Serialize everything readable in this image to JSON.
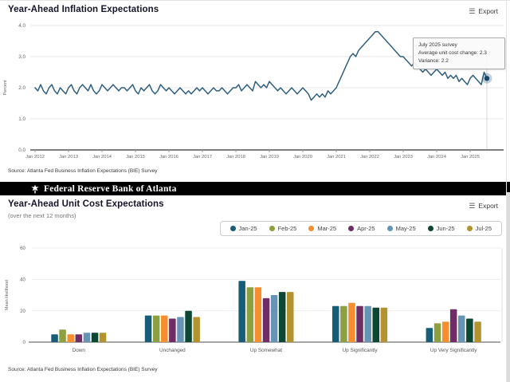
{
  "top_chart": {
    "title": "Year-Ahead Inflation Expectations",
    "export_label": "Export",
    "source": "Source: Atlanta Fed Business Inflation Expectations (BIE) Survey",
    "tooltip": {
      "line1": "July 2025 survey",
      "line2": "Average unit cost change: 2.3",
      "line3": "Variance: 2.2"
    }
  },
  "banner": {
    "text": "Federal Reserve Bank of Atlanta"
  },
  "bottom_chart": {
    "title": "Year-Ahead Unit Cost Expectations",
    "subtitle": "(over the next 12 months)",
    "export_label": "Export",
    "source": "Source: Atlanta Fed Business Inflation Expectations (BIE) Survey"
  },
  "colors": {
    "line": "#2e5f7f",
    "marker": "#17486b",
    "grid": "#e8e8e8",
    "axis": "#555555",
    "banner_bg": "#000000"
  },
  "chart_data": [
    {
      "type": "line",
      "title": "Year-Ahead Inflation Expectations",
      "xlabel": "",
      "ylabel": "Percent",
      "ylim": [
        0,
        4
      ],
      "yticks": [
        0,
        1,
        2,
        3,
        4
      ],
      "ytick_labels": [
        "0.0",
        "1.0",
        "2.0",
        "3.0",
        "4.0"
      ],
      "grid": true,
      "x_frequency": "monthly",
      "x_start": "Jan 2012",
      "x_end": "Jul 2025",
      "x_tick_labels": [
        "Jan 2012",
        "Jan 2013",
        "Jan 2014",
        "Jan 2015",
        "Jan 2016",
        "Jan 2017",
        "Jan 2018",
        "Jan 2019",
        "Jan 2020",
        "Jan 2021",
        "Jan 2022",
        "Jan 2023",
        "Jan 2024",
        "Jan 2025"
      ],
      "series": [
        {
          "name": "Year-ahead inflation expectations",
          "color": "#2e5f7f",
          "values": [
            2.0,
            1.9,
            2.1,
            1.9,
            1.8,
            2.0,
            2.1,
            1.9,
            1.8,
            2.0,
            1.9,
            1.8,
            2.0,
            2.1,
            1.9,
            1.8,
            2.0,
            2.1,
            2.0,
            1.9,
            2.1,
            1.9,
            1.8,
            1.9,
            2.1,
            2.0,
            1.9,
            2.0,
            2.1,
            2.0,
            1.9,
            2.0,
            2.0,
            1.9,
            2.0,
            2.1,
            1.9,
            1.8,
            2.0,
            1.9,
            2.0,
            2.1,
            1.9,
            1.8,
            1.9,
            2.1,
            2.0,
            1.9,
            2.0,
            1.9,
            1.8,
            1.9,
            2.0,
            1.9,
            1.8,
            1.9,
            1.8,
            1.9,
            2.0,
            1.9,
            2.0,
            1.9,
            1.8,
            1.9,
            2.0,
            1.9,
            1.9,
            2.0,
            1.9,
            1.8,
            1.9,
            2.0,
            2.0,
            2.1,
            1.9,
            2.0,
            2.1,
            2.0,
            1.9,
            2.2,
            2.1,
            2.0,
            2.1,
            2.0,
            2.2,
            2.1,
            2.0,
            1.9,
            2.0,
            1.9,
            1.8,
            1.9,
            2.0,
            1.9,
            1.8,
            1.9,
            2.0,
            1.9,
            1.8,
            1.6,
            1.7,
            1.8,
            1.7,
            1.8,
            1.7,
            1.9,
            1.8,
            1.9,
            2.0,
            2.2,
            2.4,
            2.6,
            2.8,
            3.0,
            3.1,
            3.0,
            3.2,
            3.3,
            3.4,
            3.5,
            3.6,
            3.7,
            3.8,
            3.8,
            3.7,
            3.6,
            3.5,
            3.4,
            3.3,
            3.2,
            3.1,
            3.0,
            3.0,
            2.9,
            2.8,
            2.7,
            2.8,
            2.7,
            2.6,
            2.5,
            2.6,
            2.5,
            2.4,
            2.5,
            2.6,
            2.5,
            2.4,
            2.5,
            2.3,
            2.4,
            2.3,
            2.4,
            2.2,
            2.3,
            2.2,
            2.1,
            2.3,
            2.4,
            2.3,
            2.2,
            2.1,
            2.5,
            2.3
          ]
        }
      ],
      "highlighted_point": {
        "x": "Jul 2025",
        "value": 2.3,
        "tooltip": [
          "July 2025 survey",
          "Average unit cost change: 2.3",
          "Variance: 2.2"
        ]
      },
      "legend_position": "none"
    },
    {
      "type": "bar",
      "title": "Year-Ahead Unit Cost Expectations",
      "subtitle": "(over the next 12 months)",
      "xlabel": "",
      "ylabel": "Mean likelihood",
      "ylim": [
        0,
        60
      ],
      "yticks": [
        0,
        20,
        40,
        60
      ],
      "grid": true,
      "legend_position": "top-right",
      "categories": [
        "Down",
        "Unchanged",
        "Up Somewhat",
        "Up Significantly",
        "Up Very Significantly"
      ],
      "series": [
        {
          "name": "Jan-25",
          "color": "#175d77",
          "values": [
            5,
            17,
            39,
            23,
            9
          ]
        },
        {
          "name": "Feb-25",
          "color": "#8ca03f",
          "values": [
            8,
            17,
            35,
            23,
            12
          ]
        },
        {
          "name": "Mar-25",
          "color": "#f68d2e",
          "values": [
            5,
            17,
            35,
            25,
            13
          ]
        },
        {
          "name": "Apr-25",
          "color": "#6f2c67",
          "values": [
            5,
            15,
            28,
            23,
            21
          ]
        },
        {
          "name": "May-25",
          "color": "#6594b4",
          "values": [
            6,
            16,
            30,
            23,
            17
          ]
        },
        {
          "name": "Jun-25",
          "color": "#0b4733",
          "values": [
            6,
            20,
            32,
            22,
            15
          ]
        },
        {
          "name": "Jul-25",
          "color": "#b4932f",
          "values": [
            6,
            16,
            32,
            22,
            13
          ]
        }
      ]
    }
  ]
}
